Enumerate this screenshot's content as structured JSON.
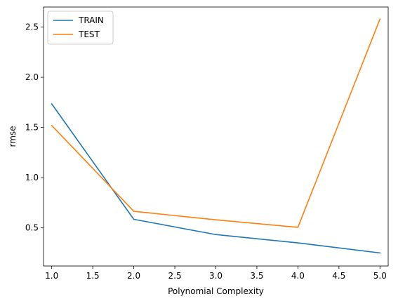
{
  "chart_data": {
    "type": "line",
    "title": "",
    "xlabel": "Polynomial Complexity",
    "ylabel": "rmse",
    "x": [
      1.0,
      2.0,
      3.0,
      4.0,
      5.0
    ],
    "series": [
      {
        "name": "TRAIN",
        "color": "#1f77b4",
        "values": [
          1.735,
          0.585,
          0.433,
          0.35,
          0.25
        ]
      },
      {
        "name": "TEST",
        "color": "#ff7f0e",
        "values": [
          1.52,
          0.665,
          0.58,
          0.505,
          2.58
        ]
      }
    ],
    "xlim": [
      0.9,
      5.1
    ],
    "ylim": [
      0.12,
      2.7
    ],
    "xticks": [
      1.0,
      1.5,
      2.0,
      2.5,
      3.0,
      3.5,
      4.0,
      4.5,
      5.0
    ],
    "xtick_labels": [
      "1.0",
      "1.5",
      "2.0",
      "2.5",
      "3.0",
      "3.5",
      "4.0",
      "4.5",
      "5.0"
    ],
    "yticks": [
      0.5,
      1.0,
      1.5,
      2.0,
      2.5
    ],
    "ytick_labels": [
      "0.5",
      "1.0",
      "1.5",
      "2.0",
      "2.5"
    ],
    "grid": false,
    "legend_position": "upper-left"
  }
}
